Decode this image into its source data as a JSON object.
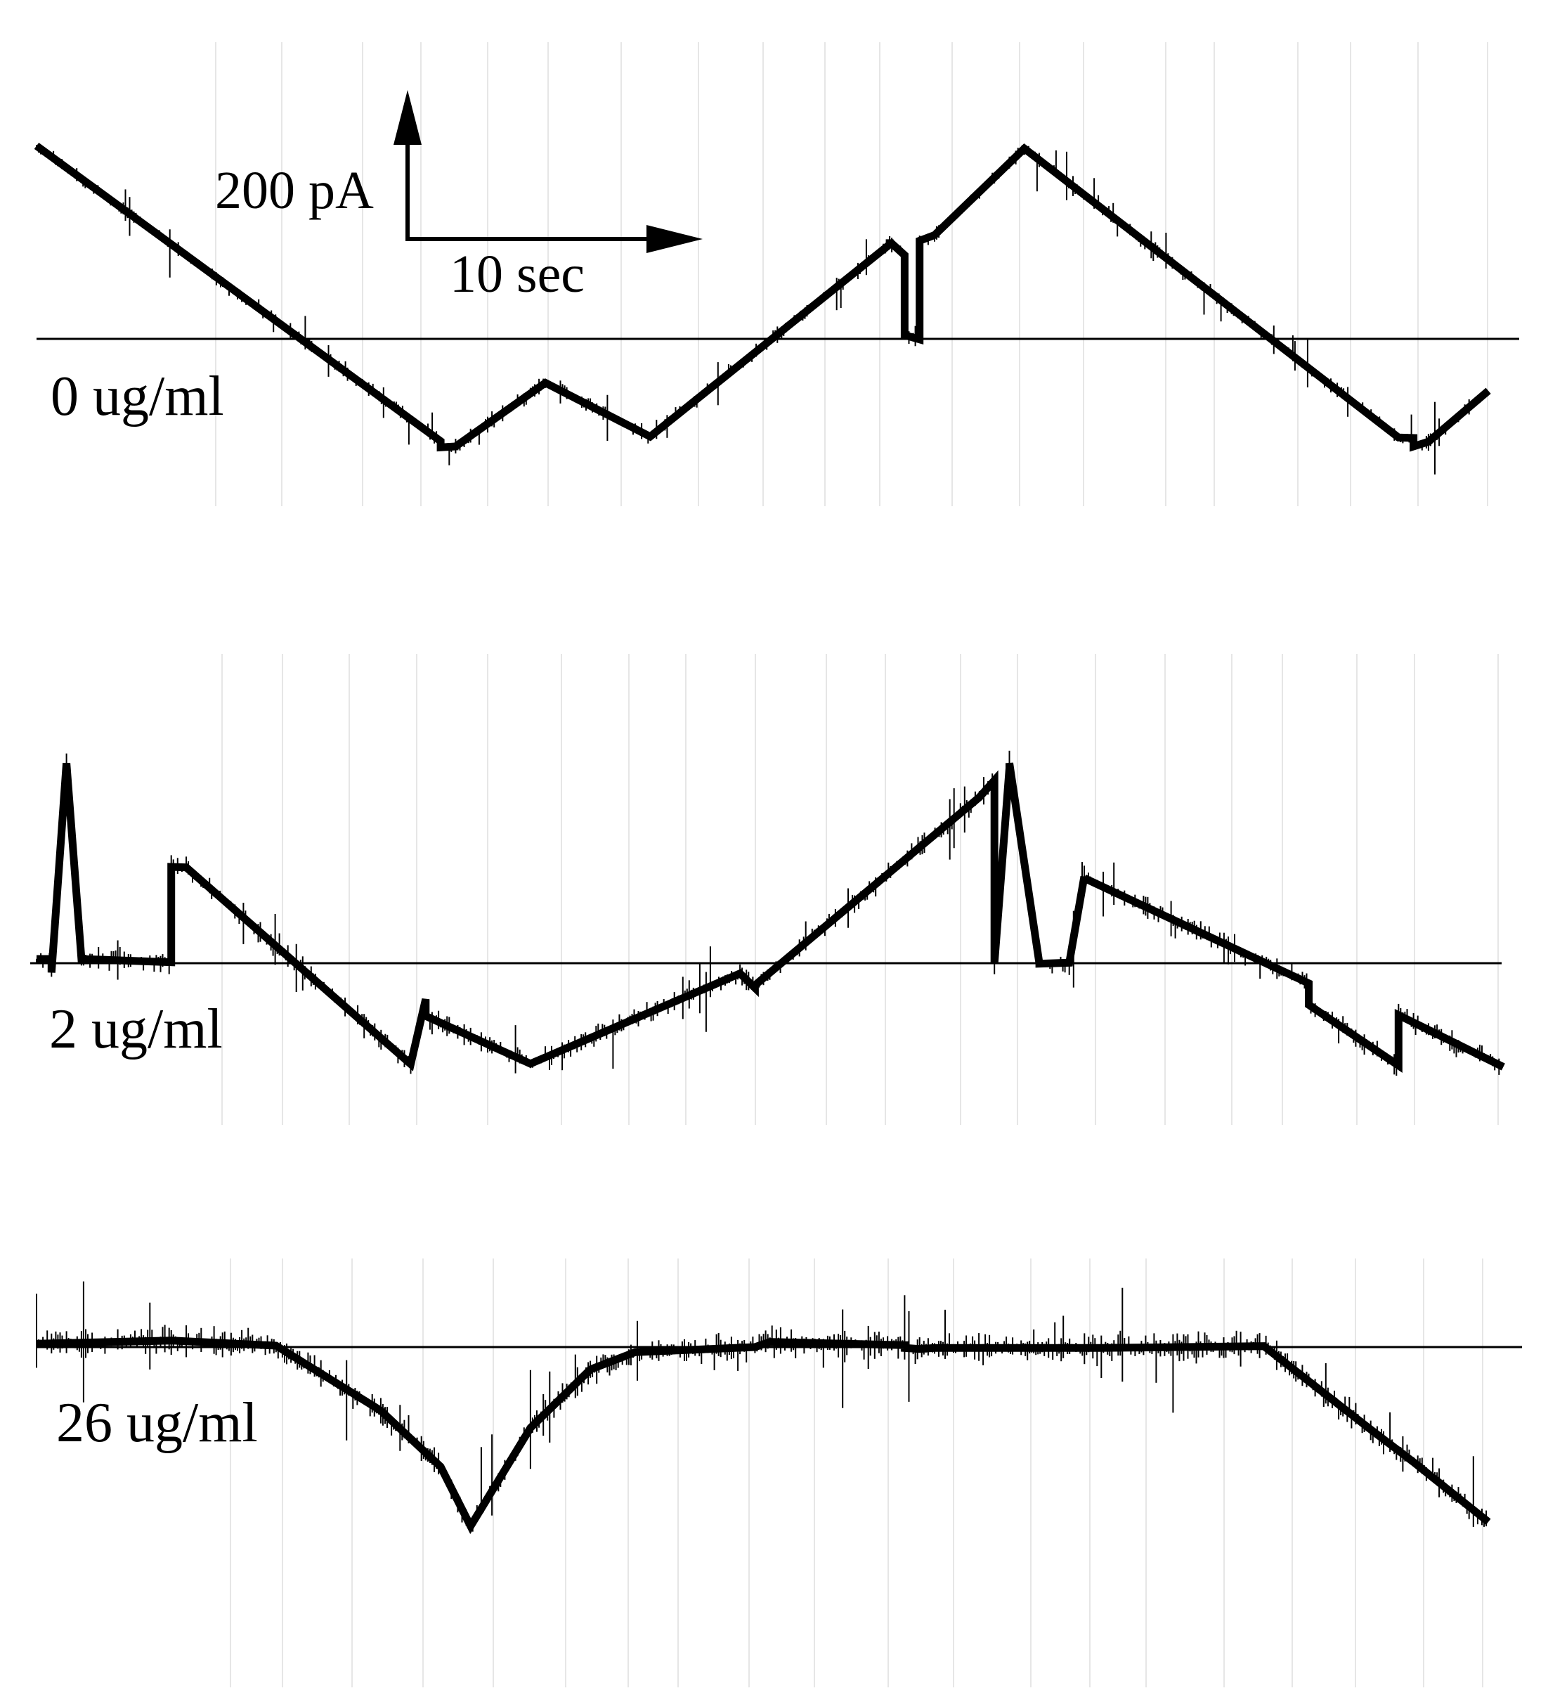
{
  "chart_data": {
    "type": "line",
    "title": "",
    "xlabel": "",
    "ylabel": "",
    "scale_bar": {
      "y_label": "200 pA",
      "x_label": "10 sec"
    },
    "series": [
      {
        "label": "0 ug/ml",
        "points": [
          [
            0,
            413
          ],
          [
            27,
            -219
          ],
          [
            27,
            -232
          ],
          [
            28,
            -230
          ],
          [
            34,
            -94
          ],
          [
            41,
            -209
          ],
          [
            57,
            202
          ],
          [
            57,
            213
          ],
          [
            57,
            208
          ],
          [
            58,
            179
          ],
          [
            58,
            8
          ],
          [
            59,
            -1
          ],
          [
            59,
            -1
          ],
          [
            59,
            210
          ],
          [
            60,
            222
          ],
          [
            66,
            407
          ],
          [
            91,
            -211
          ],
          [
            92,
            -212
          ],
          [
            92,
            -230
          ],
          [
            93,
            -220
          ],
          [
            97,
            -111
          ]
        ]
      },
      {
        "label": "2 ug/ml",
        "points": [
          [
            0,
            9
          ],
          [
            1,
            9
          ],
          [
            1,
            -20
          ],
          [
            2,
            428
          ],
          [
            3,
            9
          ],
          [
            9,
            2
          ],
          [
            9,
            206
          ],
          [
            10,
            205
          ],
          [
            25,
            -216
          ],
          [
            26,
            -77
          ],
          [
            26,
            -113
          ],
          [
            33,
            -215
          ],
          [
            47,
            -22
          ],
          [
            48,
            -53
          ],
          [
            48,
            -47
          ],
          [
            63,
            355
          ],
          [
            64,
            391
          ],
          [
            64,
            0
          ],
          [
            65,
            417
          ],
          [
            65,
            428
          ],
          [
            67,
            0
          ],
          [
            67,
            -1
          ],
          [
            69,
            1
          ],
          [
            70,
            185
          ],
          [
            70,
            182
          ],
          [
            85,
            -43
          ],
          [
            85,
            -89
          ],
          [
            91,
            -219
          ],
          [
            91,
            -111
          ],
          [
            98,
            -222
          ]
        ]
      },
      {
        "label": "26 ug/ml",
        "points": [
          [
            0,
            7
          ],
          [
            9,
            14
          ],
          [
            16,
            3
          ],
          [
            23,
            -136
          ],
          [
            27,
            -256
          ],
          [
            29,
            -383
          ],
          [
            33,
            -173
          ],
          [
            37,
            -48
          ],
          [
            40,
            -11
          ],
          [
            48,
            0
          ],
          [
            49,
            11
          ],
          [
            58,
            4
          ],
          [
            58,
            -2
          ],
          [
            59,
            -4
          ],
          [
            60,
            -2
          ],
          [
            71,
            -2
          ],
          [
            82,
            2
          ],
          [
            89,
            -173
          ],
          [
            92,
            -246
          ],
          [
            97,
            -374
          ]
        ]
      }
    ]
  },
  "labels": {
    "scale_y": "200 pA",
    "scale_x": "10 sec",
    "trace1": "0 ug/ml",
    "trace2": "2 ug/ml",
    "trace3": "26 ug/ml"
  }
}
